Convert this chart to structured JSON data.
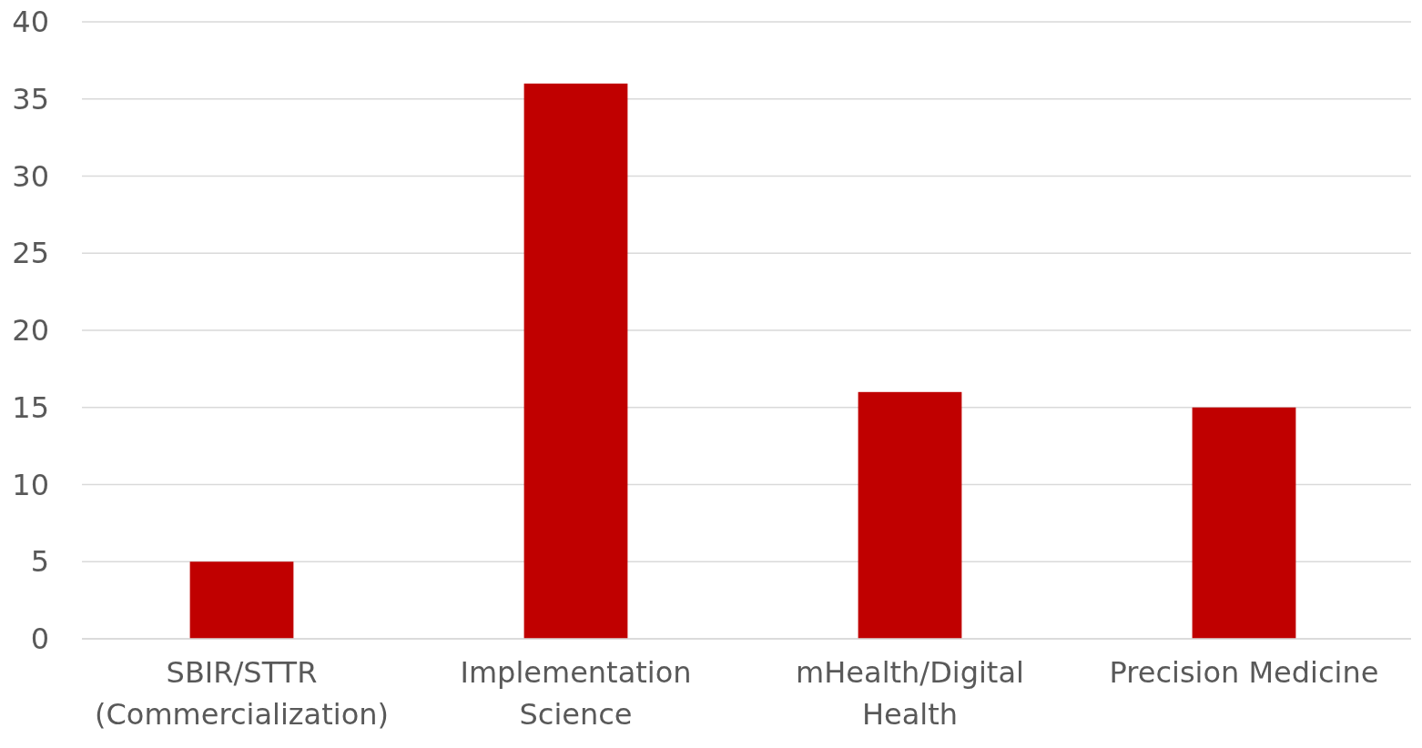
{
  "chart_data": {
    "type": "bar",
    "categories": [
      "SBIR/STTR (Commercialization)",
      "Implementation Science",
      "mHealth/Digital Health",
      "Precision Medicine"
    ],
    "values": [
      5,
      36,
      16,
      15
    ],
    "color": "#c00000",
    "ylim": [
      0,
      40
    ],
    "yticks": [
      0,
      5,
      10,
      15,
      20,
      25,
      30,
      35,
      40
    ],
    "grid": "y"
  }
}
